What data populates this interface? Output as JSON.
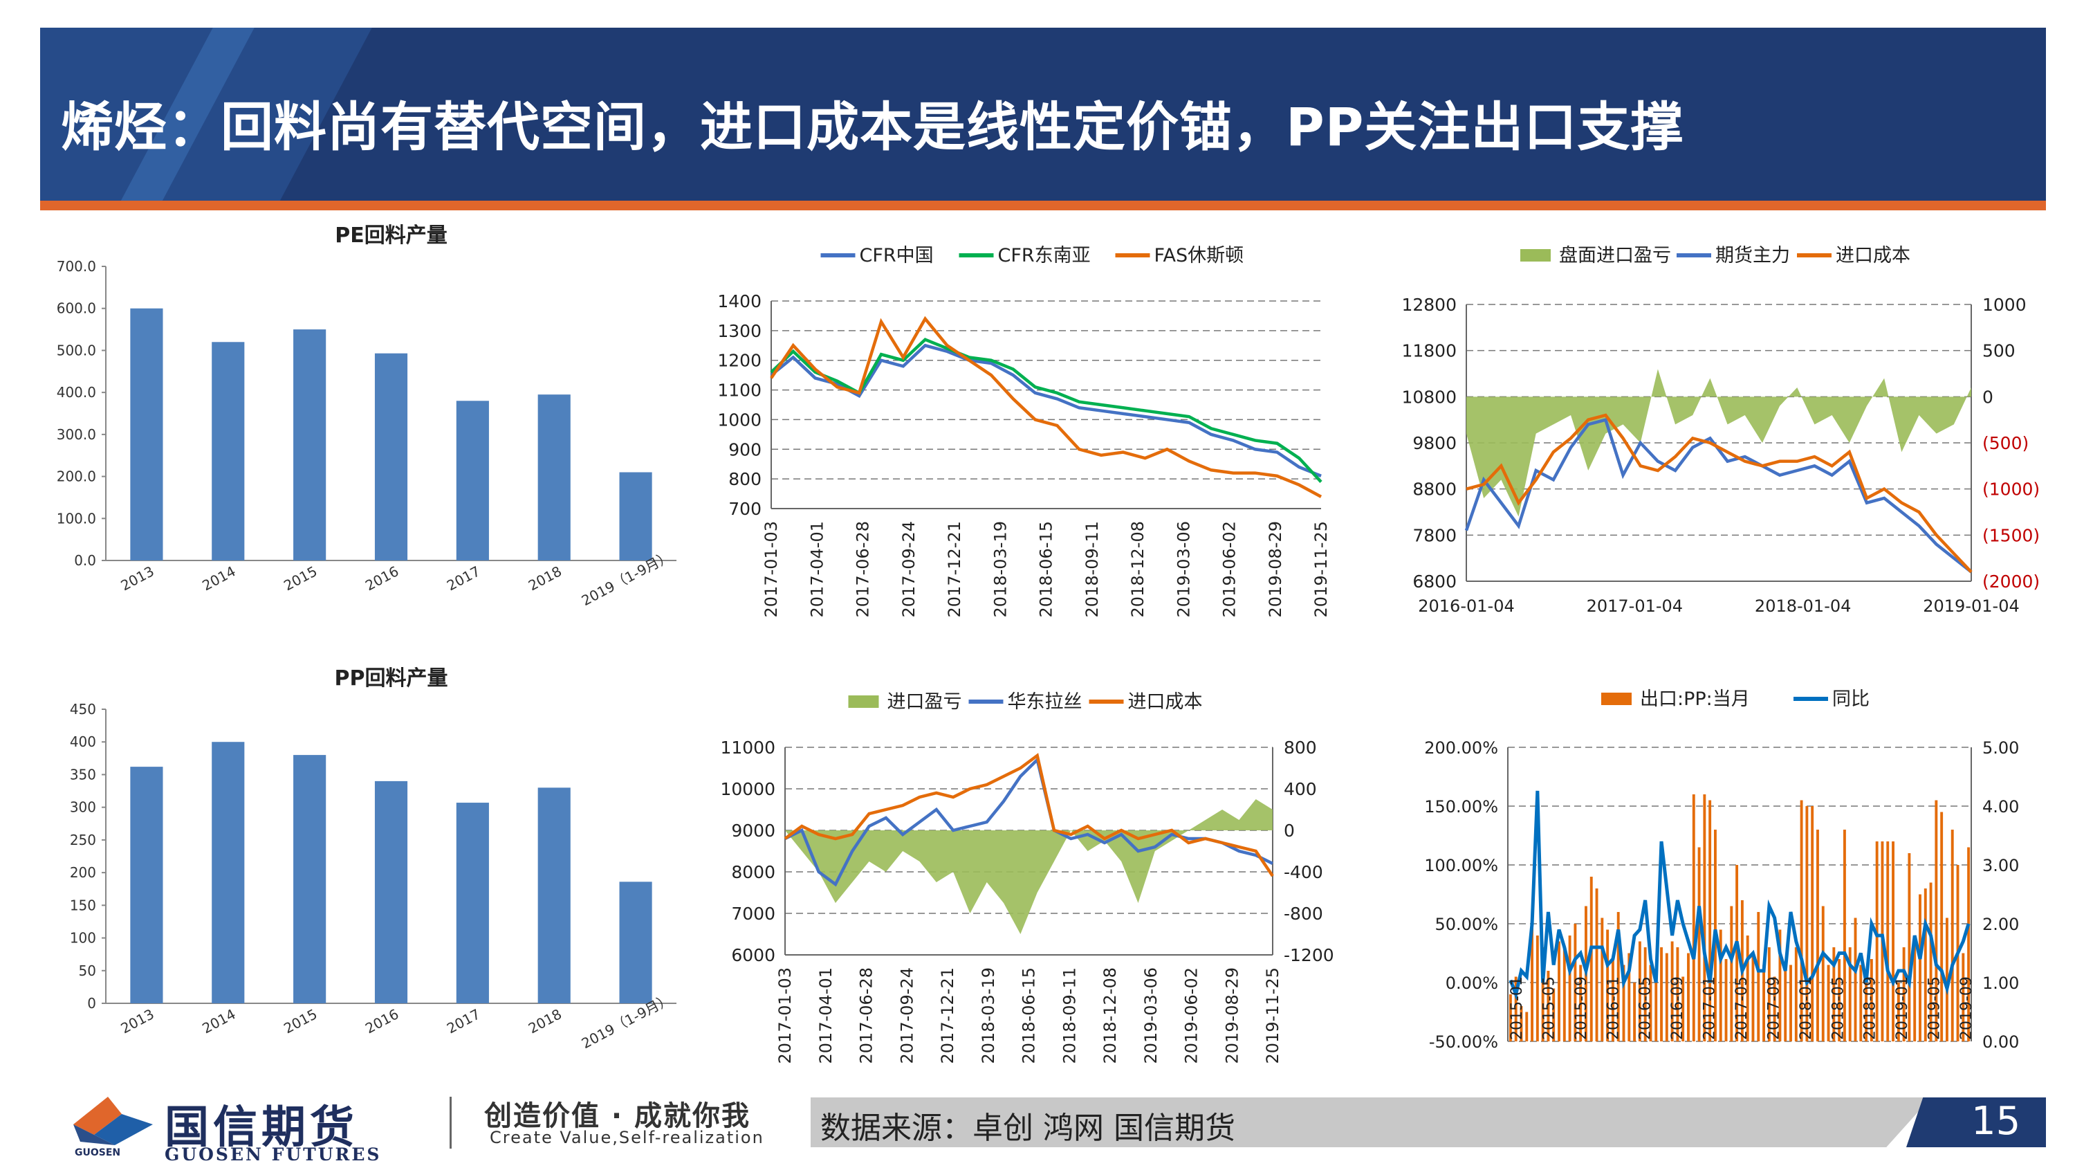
{
  "header": {
    "title": "烯烃：回料尚有替代空间，进口成本是线性定价锚，PP关注出口支撑"
  },
  "colors": {
    "header_bg": "#1f3b72",
    "accent_orange": "#e0662b",
    "bar_blue": "#4f81bd",
    "line_orange": "#e46c0a",
    "line_green": "#00b050",
    "line_blue": "#4472c4",
    "area_green": "#9bbb59"
  },
  "chart_data": [
    {
      "id": "pe-recycled",
      "type": "bar",
      "title": "PE回料产量",
      "categories": [
        "2013",
        "2014",
        "2015",
        "2016",
        "2017",
        "2018",
        "2019（1-9月）"
      ],
      "values": [
        600,
        520,
        550,
        493,
        380,
        395,
        210
      ],
      "ylim": [
        0,
        700
      ],
      "yticks": [
        "0.0",
        "100.0",
        "200.0",
        "300.0",
        "400.0",
        "500.0",
        "600.0",
        "700.0"
      ],
      "grid": false
    },
    {
      "id": "pp-recycled",
      "type": "bar",
      "title": "PP回料产量",
      "categories": [
        "2013",
        "2014",
        "2015",
        "2016",
        "2017",
        "2018",
        "2019（1-9月）"
      ],
      "values": [
        362,
        400,
        380,
        340,
        307,
        330,
        186
      ],
      "ylim": [
        0,
        450
      ],
      "yticks": [
        "0",
        "50",
        "100",
        "150",
        "200",
        "250",
        "300",
        "350",
        "400",
        "450"
      ],
      "grid": false
    },
    {
      "id": "pe-import-prices",
      "type": "line",
      "legend": [
        "CFR中国",
        "CFR东南亚",
        "FAS休斯顿"
      ],
      "legend_position": "top",
      "xticks": [
        "2017-01-03",
        "2017-04-01",
        "2017-06-28",
        "2017-09-24",
        "2017-12-21",
        "2018-03-19",
        "2018-06-15",
        "2018-09-11",
        "2018-12-08",
        "2019-03-06",
        "2019-06-02",
        "2019-08-29",
        "2019-11-25"
      ],
      "ylim": [
        700,
        1400
      ],
      "yticks": [
        "700",
        "800",
        "900",
        "1000",
        "1100",
        "1200",
        "1300",
        "1400"
      ],
      "grid": true,
      "series": [
        {
          "name": "CFR中国",
          "color": "#4472c4",
          "values": [
            1150,
            1210,
            1140,
            1120,
            1080,
            1200,
            1180,
            1250,
            1230,
            1200,
            1190,
            1150,
            1090,
            1070,
            1040,
            1030,
            1020,
            1010,
            1000,
            990,
            950,
            930,
            900,
            890,
            840,
            810
          ]
        },
        {
          "name": "CFR东南亚",
          "color": "#00b050",
          "values": [
            1160,
            1230,
            1160,
            1130,
            1090,
            1220,
            1200,
            1270,
            1240,
            1210,
            1200,
            1170,
            1110,
            1090,
            1060,
            1050,
            1040,
            1030,
            1020,
            1010,
            970,
            950,
            930,
            920,
            870,
            790
          ]
        },
        {
          "name": "FAS休斯顿",
          "color": "#e46c0a",
          "values": [
            1140,
            1250,
            1170,
            1110,
            1090,
            1330,
            1210,
            1340,
            1250,
            1200,
            1150,
            1070,
            1000,
            980,
            900,
            880,
            890,
            870,
            900,
            860,
            830,
            820,
            820,
            810,
            780,
            740
          ]
        }
      ]
    },
    {
      "id": "pe-futures-import",
      "type": "line",
      "legend": [
        "盘面进口盈亏",
        "期货主力",
        "进口成本"
      ],
      "legend_position": "top",
      "xticks": [
        "2016-01-04",
        "2017-01-04",
        "2018-01-04",
        "2019-01-04"
      ],
      "ylim": [
        6800,
        12800
      ],
      "yticks": [
        "6800",
        "7800",
        "8800",
        "9800",
        "10800",
        "11800",
        "12800"
      ],
      "y2lim": [
        -2000,
        1000
      ],
      "y2ticks": [
        "(2000)",
        "(1500)",
        "(1000)",
        "(500)",
        "0",
        "500",
        "1000"
      ],
      "grid": true,
      "series": [
        {
          "name": "盘面进口盈亏",
          "color": "#9bbb59",
          "axis": "right",
          "values": [
            -400,
            -1100,
            -900,
            -1300,
            -400,
            -300,
            -200,
            -800,
            -400,
            -300,
            -500,
            300,
            -300,
            -200,
            200,
            -300,
            -200,
            -500,
            -100,
            100,
            -300,
            -200,
            -500,
            -100,
            200,
            -600,
            -200,
            -400,
            -300,
            100
          ]
        },
        {
          "name": "期货主力",
          "color": "#4472c4",
          "axis": "left",
          "values": [
            7900,
            9000,
            8500,
            8000,
            9200,
            9000,
            9700,
            10200,
            10300,
            9100,
            9800,
            9400,
            9200,
            9700,
            9900,
            9400,
            9500,
            9300,
            9100,
            9200,
            9300,
            9100,
            9400,
            8500,
            8600,
            8300,
            8000,
            7600,
            7300,
            7000
          ]
        },
        {
          "name": "进口成本",
          "color": "#e46c0a",
          "axis": "left",
          "values": [
            8800,
            8900,
            9300,
            8500,
            9000,
            9600,
            9900,
            10300,
            10400,
            9900,
            9300,
            9200,
            9500,
            9900,
            9800,
            9600,
            9400,
            9300,
            9400,
            9400,
            9500,
            9300,
            9600,
            8600,
            8800,
            8500,
            8300,
            7800,
            7400,
            7000
          ]
        }
      ]
    },
    {
      "id": "pp-import-profit",
      "type": "line",
      "legend": [
        "进口盈亏",
        "华东拉丝",
        "进口成本"
      ],
      "legend_position": "top",
      "xticks": [
        "2017-01-03",
        "2017-04-01",
        "2017-06-28",
        "2017-09-24",
        "2017-12-21",
        "2018-03-19",
        "2018-06-15",
        "2018-09-11",
        "2018-12-08",
        "2019-03-06",
        "2019-06-02",
        "2019-08-29",
        "2019-11-25"
      ],
      "ylim": [
        6000,
        11000
      ],
      "yticks": [
        "6000",
        "7000",
        "8000",
        "9000",
        "10000",
        "11000"
      ],
      "y2lim": [
        -1200,
        800
      ],
      "y2ticks": [
        "-1200",
        "-800",
        "-400",
        "0",
        "400",
        "800"
      ],
      "grid": true,
      "series": [
        {
          "name": "进口盈亏",
          "color": "#9bbb59",
          "axis": "right",
          "values": [
            0,
            -200,
            -400,
            -700,
            -500,
            -300,
            -400,
            -200,
            -300,
            -500,
            -400,
            -800,
            -500,
            -700,
            -1000,
            -600,
            -300,
            0,
            -200,
            -100,
            -300,
            -700,
            -200,
            -100,
            0,
            100,
            200,
            100,
            300,
            200
          ]
        },
        {
          "name": "华东拉丝",
          "color": "#4472c4",
          "axis": "left",
          "values": [
            8800,
            9000,
            8000,
            7700,
            8500,
            9100,
            9300,
            8900,
            9200,
            9500,
            9000,
            9100,
            9200,
            9700,
            10300,
            10700,
            9000,
            8800,
            8900,
            8700,
            8900,
            8500,
            8600,
            8900,
            8800,
            8800,
            8700,
            8500,
            8400,
            8200
          ]
        },
        {
          "name": "进口成本",
          "color": "#e46c0a",
          "axis": "left",
          "values": [
            8800,
            9100,
            8900,
            8800,
            8900,
            9400,
            9500,
            9600,
            9800,
            9900,
            9800,
            10000,
            10100,
            10300,
            10500,
            10800,
            9000,
            8900,
            9100,
            8800,
            9000,
            8800,
            8900,
            9000,
            8700,
            8800,
            8700,
            8600,
            8500,
            7900
          ]
        }
      ]
    },
    {
      "id": "pp-export",
      "type": "bar",
      "legend": [
        "出口:PP:当月",
        "同比"
      ],
      "legend_position": "top",
      "xticks": [
        "2015-01",
        "2015-05",
        "2015-09",
        "2016-01",
        "2016-05",
        "2016-09",
        "2017-01",
        "2017-05",
        "2017-09",
        "2018-01",
        "2018-05",
        "2018-09",
        "2019-01",
        "2019-05",
        "2019-09"
      ],
      "ylim": [
        -50,
        200
      ],
      "yticks": [
        "-50.00%",
        "0.00%",
        "50.00%",
        "100.00%",
        "150.00%",
        "200.00%"
      ],
      "y2lim": [
        0,
        5
      ],
      "y2ticks": [
        "0.00",
        "1.00",
        "2.00",
        "3.00",
        "4.00",
        "5.00"
      ],
      "grid": true,
      "series": [
        {
          "name": "出口:PP:当月",
          "color": "#e46c0a",
          "axis": "right",
          "values": [
            0.8,
            1.1,
            0.6,
            0.5,
            2.0,
            1.8,
            1.6,
            1.2,
            0.9,
            1.7,
            1.6,
            1.8,
            2.0,
            1.3,
            2.3,
            2.8,
            2.6,
            2.1,
            1.9,
            1.4,
            2.2,
            1.3,
            1.5,
            1.0,
            1.7,
            1.6,
            1.3,
            1.2,
            1.6,
            1.5,
            1.7,
            1.6,
            1.1,
            1.5,
            4.2,
            3.3,
            4.2,
            4.1,
            3.6,
            1.9,
            1.4,
            2.3,
            3.0,
            2.4,
            1.8,
            1.5,
            2.2,
            1.3,
            1.6,
            1.1,
            1.9,
            1.3,
            1.3,
            1.6,
            4.1,
            4.0,
            4.0,
            3.6,
            2.3,
            1.3,
            1.6,
            1.4,
            3.6,
            1.6,
            2.1,
            1.3,
            1.2,
            1.4,
            3.4,
            3.4,
            3.4,
            3.4,
            1.0,
            1.6,
            3.2,
            1.8,
            2.5,
            2.6,
            2.7,
            4.1,
            3.9,
            2.1,
            3.6,
            3.0,
            1.5,
            3.3
          ]
        },
        {
          "name": "同比",
          "color": "#0070c0",
          "axis": "left",
          "values": [
            2,
            -10,
            10,
            5,
            50,
            163,
            0,
            60,
            15,
            45,
            30,
            10,
            20,
            25,
            10,
            30,
            30,
            30,
            15,
            20,
            45,
            0,
            10,
            40,
            45,
            70,
            20,
            0,
            120,
            80,
            40,
            70,
            50,
            35,
            20,
            65,
            25,
            0,
            45,
            20,
            30,
            20,
            35,
            10,
            20,
            25,
            10,
            10,
            65,
            55,
            25,
            10,
            60,
            35,
            20,
            0,
            5,
            15,
            25,
            20,
            15,
            25,
            25,
            15,
            10,
            25,
            0,
            50,
            40,
            40,
            10,
            0,
            10,
            10,
            0,
            40,
            20,
            50,
            40,
            15,
            10,
            -5,
            15,
            25,
            35,
            50
          ]
        }
      ]
    }
  ],
  "footer": {
    "logo_cn": "国信期货",
    "logo_en": "GUOSEN FUTURES",
    "logo_small": "GUOSEN",
    "slogan_cn": "创造价值 · 成就你我",
    "slogan_en": "Create Value,Self-realization",
    "source": "数据来源：卓创  鸿网    国信期货",
    "page_number": "15"
  }
}
